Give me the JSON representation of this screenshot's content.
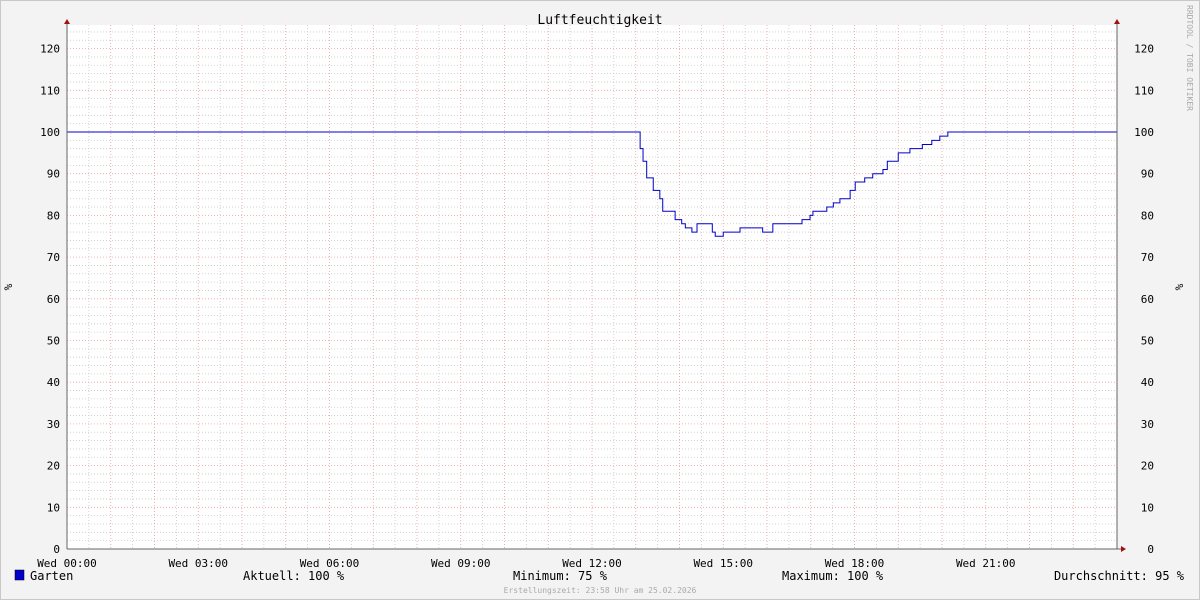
{
  "chart_data": {
    "type": "line",
    "title": "Luftfeuchtigkeit",
    "ylabel": "%",
    "ylabel_right": "%",
    "ylim": [
      0,
      125
    ],
    "yticks": [
      0,
      10,
      20,
      30,
      40,
      50,
      60,
      70,
      80,
      90,
      100,
      110,
      120
    ],
    "xlim": [
      "00:00",
      "24:00"
    ],
    "xticks": [
      "Wed 00:00",
      "Wed 03:00",
      "Wed 06:00",
      "Wed 09:00",
      "Wed 12:00",
      "Wed 15:00",
      "Wed 18:00",
      "Wed 21:00"
    ],
    "grid": true,
    "series": [
      {
        "name": "Garten",
        "color": "#0000cc",
        "x": [
          "00:00",
          "13:03",
          "13:06",
          "13:10",
          "13:15",
          "13:22",
          "13:24",
          "13:33",
          "13:37",
          "13:50",
          "13:54",
          "14:03",
          "14:08",
          "14:17",
          "14:24",
          "14:38",
          "14:45",
          "14:49",
          "15:00",
          "15:20",
          "15:23",
          "15:50",
          "15:54",
          "16:08",
          "16:45",
          "16:48",
          "16:59",
          "17:03",
          "17:22",
          "17:31",
          "17:40",
          "17:54",
          "18:01",
          "18:14",
          "18:25",
          "18:39",
          "18:45",
          "19:00",
          "19:16",
          "19:33",
          "19:46",
          "19:57",
          "20:08",
          "24:00"
        ],
        "y": [
          100,
          100,
          96,
          93,
          89,
          89,
          86,
          84,
          81,
          81,
          79,
          78,
          77,
          76,
          78,
          78,
          76,
          75,
          76,
          76,
          77,
          77,
          76,
          78,
          78,
          79,
          80,
          81,
          82,
          83,
          84,
          86,
          88,
          89,
          90,
          91,
          93,
          95,
          96,
          97,
          98,
          99,
          100,
          100
        ]
      }
    ],
    "legend": {
      "placement": "bottom",
      "name": "Garten",
      "aktuell": "Aktuell: 100 %",
      "minimum": "Minimum:  75 %",
      "maximum": "Maximum: 100 %",
      "durchschnitt": "Durchschnitt:  95 %"
    },
    "watermark": "RRDTOOL / TOBI OETIKER",
    "footer": "Erstellungszeit: 23:58 Uhr am 25.02.2026",
    "colors": {
      "background": "#f3f3f3",
      "canvas": "#ffffff",
      "major_grid": "#e8a0a0",
      "minor_grid": "#c8c8c8",
      "axis": "#666666",
      "arrow": "#a01010"
    }
  }
}
